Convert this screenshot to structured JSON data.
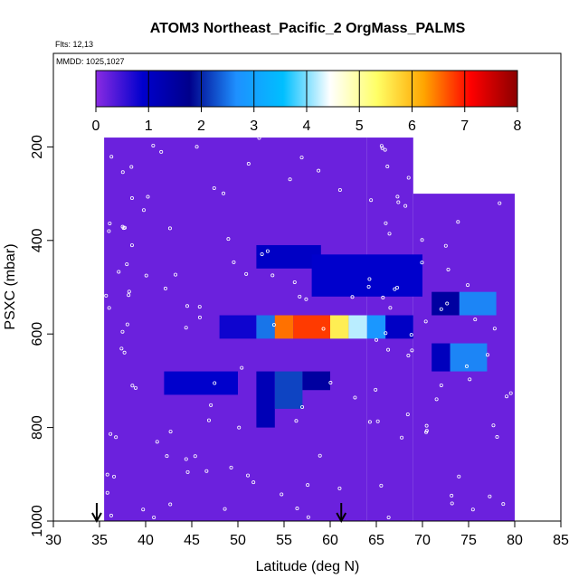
{
  "chart_data": {
    "type": "heatmap",
    "title": "ATOM3 Northeast_Pacific_2 OrgMass_PALMS",
    "flights_note": "Flts: 12,13",
    "date_note": "MMDD: 1025,1027",
    "xlabel": "Latitude (deg N)",
    "ylabel": "PSXC (mbar)",
    "xlim": [
      30,
      85
    ],
    "ylim": [
      1000,
      0
    ],
    "x_ticks": [
      30,
      35,
      40,
      45,
      50,
      55,
      60,
      65,
      70,
      75,
      80,
      85
    ],
    "y_ticks": [
      200,
      400,
      600,
      800,
      1000
    ],
    "colorbar": {
      "min": 0,
      "max": 8,
      "ticks": [
        0,
        1,
        2,
        3,
        4,
        5,
        6,
        7,
        8
      ],
      "stops": [
        "#8a2be2",
        "#0000cd",
        "#00008b",
        "#1e90ff",
        "#00bfff",
        "#ffffff",
        "#ffff66",
        "#ffa500",
        "#ff0000",
        "#8b0000"
      ]
    },
    "arrows_latitude": [
      34.7,
      61.2
    ],
    "background_value": 0.2,
    "columns": [
      {
        "lat": [
          35.5,
          40
        ],
        "p": [
          180,
          1000
        ]
      },
      {
        "lat": [
          40,
          50
        ],
        "p": [
          180,
          1000
        ]
      },
      {
        "lat": [
          50,
          64
        ],
        "p": [
          180,
          1000
        ]
      },
      {
        "lat": [
          64,
          69
        ],
        "p": [
          180,
          1000
        ]
      },
      {
        "lat": [
          69,
          80
        ],
        "p": [
          300,
          1000
        ]
      }
    ],
    "features": [
      {
        "lat": [
          52,
          59
        ],
        "p": [
          410,
          460
        ],
        "value": 1.0
      },
      {
        "lat": [
          58,
          70
        ],
        "p": [
          430,
          520
        ],
        "value": 0.9
      },
      {
        "lat": [
          48,
          52
        ],
        "p": [
          560,
          610
        ],
        "value": 0.8
      },
      {
        "lat": [
          52,
          54
        ],
        "p": [
          560,
          610
        ],
        "value": 2.5
      },
      {
        "lat": [
          54,
          56
        ],
        "p": [
          560,
          610
        ],
        "value": 6.5
      },
      {
        "lat": [
          56,
          60
        ],
        "p": [
          560,
          610
        ],
        "value": 6.8
      },
      {
        "lat": [
          60,
          62
        ],
        "p": [
          560,
          610
        ],
        "value": 5.5
      },
      {
        "lat": [
          62,
          64
        ],
        "p": [
          560,
          610
        ],
        "value": 4.2
      },
      {
        "lat": [
          64,
          66
        ],
        "p": [
          560,
          610
        ],
        "value": 2.8
      },
      {
        "lat": [
          66,
          69
        ],
        "p": [
          560,
          610
        ],
        "value": 1.0
      },
      {
        "lat": [
          42,
          50
        ],
        "p": [
          680,
          730
        ],
        "value": 0.9
      },
      {
        "lat": [
          52,
          54
        ],
        "p": [
          680,
          800
        ],
        "value": 1.2
      },
      {
        "lat": [
          54,
          57
        ],
        "p": [
          680,
          760
        ],
        "value": 2.2
      },
      {
        "lat": [
          57,
          60
        ],
        "p": [
          680,
          720
        ],
        "value": 1.5
      },
      {
        "lat": [
          71,
          74
        ],
        "p": [
          510,
          560
        ],
        "value": 1.5
      },
      {
        "lat": [
          74,
          78
        ],
        "p": [
          510,
          560
        ],
        "value": 2.6
      },
      {
        "lat": [
          71,
          73
        ],
        "p": [
          620,
          680
        ],
        "value": 1.1
      },
      {
        "lat": [
          73,
          77
        ],
        "p": [
          620,
          680
        ],
        "value": 2.6
      }
    ]
  }
}
